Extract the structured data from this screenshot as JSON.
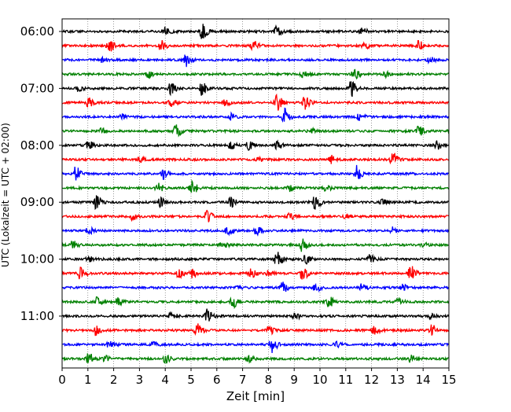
{
  "chart_data": {
    "type": "line",
    "title": "",
    "xlabel": "Zeit  [min]",
    "ylabel": "UTC (Lokalzeit = UTC + 02:00)",
    "xlim": [
      0,
      15
    ],
    "x_ticks": [
      0,
      1,
      2,
      3,
      4,
      5,
      6,
      7,
      8,
      9,
      10,
      11,
      12,
      13,
      14,
      15
    ],
    "x_tick_labels": [
      "0",
      "1",
      "2",
      "3",
      "4",
      "5",
      "6",
      "7",
      "8",
      "9",
      "10",
      "11",
      "12",
      "13",
      "14",
      "15"
    ],
    "y_tick_labels": [
      "06:00",
      "07:00",
      "08:00",
      "09:00",
      "10:00",
      "11:00"
    ],
    "y_tick_rows": [
      0,
      4,
      8,
      12,
      16,
      20
    ],
    "row_minutes": 15,
    "grid": "vertical dotted lines at each minute",
    "color_cycle": [
      "#000000",
      "#ff0000",
      "#0000ff",
      "#008000"
    ],
    "rows": [
      {
        "start": "06:00",
        "events": [
          [
            5.4,
            1.0
          ],
          [
            8.3,
            0.6
          ],
          [
            4.0,
            0.5
          ],
          [
            11.6,
            0.4
          ]
        ]
      },
      {
        "start": "06:15",
        "events": [
          [
            1.8,
            0.9
          ],
          [
            3.8,
            0.7
          ],
          [
            7.4,
            0.6
          ],
          [
            13.8,
            0.6
          ],
          [
            11.7,
            0.4
          ]
        ]
      },
      {
        "start": "06:30",
        "events": [
          [
            4.8,
            1.0
          ],
          [
            14.2,
            0.4
          ],
          [
            1.5,
            0.3
          ]
        ]
      },
      {
        "start": "06:45",
        "events": [
          [
            11.3,
            0.7
          ],
          [
            3.3,
            0.4
          ],
          [
            9.3,
            0.4
          ],
          [
            12.5,
            0.3
          ]
        ]
      },
      {
        "start": "07:00",
        "events": [
          [
            4.2,
            0.7
          ],
          [
            5.4,
            0.8
          ],
          [
            11.2,
            1.0
          ],
          [
            0.6,
            0.3
          ]
        ]
      },
      {
        "start": "07:15",
        "events": [
          [
            8.3,
            1.0
          ],
          [
            9.4,
            0.9
          ],
          [
            1.0,
            0.5
          ],
          [
            4.2,
            0.5
          ],
          [
            6.3,
            0.4
          ]
        ]
      },
      {
        "start": "07:30",
        "events": [
          [
            8.6,
            1.0
          ],
          [
            6.5,
            0.4
          ],
          [
            2.3,
            0.3
          ],
          [
            11.5,
            0.4
          ]
        ]
      },
      {
        "start": "07:45",
        "events": [
          [
            4.4,
            0.8
          ],
          [
            13.8,
            0.6
          ],
          [
            1.5,
            0.3
          ],
          [
            9.6,
            0.3
          ]
        ]
      },
      {
        "start": "08:00",
        "events": [
          [
            1.0,
            0.5
          ],
          [
            6.5,
            0.5
          ],
          [
            7.2,
            0.5
          ],
          [
            8.3,
            0.5
          ],
          [
            14.5,
            0.5
          ]
        ]
      },
      {
        "start": "08:15",
        "events": [
          [
            12.8,
            0.9
          ],
          [
            10.4,
            0.5
          ],
          [
            3.0,
            0.3
          ],
          [
            7.6,
            0.3
          ]
        ]
      },
      {
        "start": "08:30",
        "events": [
          [
            0.5,
            0.9
          ],
          [
            11.4,
            1.0
          ],
          [
            3.9,
            0.6
          ]
        ]
      },
      {
        "start": "08:45",
        "events": [
          [
            3.7,
            0.6
          ],
          [
            5.0,
            1.0
          ],
          [
            10.2,
            0.5
          ],
          [
            8.8,
            0.4
          ]
        ]
      },
      {
        "start": "09:00",
        "events": [
          [
            1.3,
            0.9
          ],
          [
            3.8,
            0.6
          ],
          [
            6.5,
            0.7
          ],
          [
            9.8,
            1.0
          ],
          [
            12.4,
            0.3
          ]
        ]
      },
      {
        "start": "09:15",
        "events": [
          [
            2.7,
            0.4
          ],
          [
            5.6,
            0.7
          ],
          [
            8.8,
            0.4
          ],
          [
            11.0,
            0.3
          ]
        ]
      },
      {
        "start": "09:30",
        "events": [
          [
            1.0,
            0.4
          ],
          [
            6.4,
            0.6
          ],
          [
            7.5,
            0.6
          ],
          [
            12.8,
            0.4
          ]
        ]
      },
      {
        "start": "09:45",
        "events": [
          [
            9.3,
            0.8
          ],
          [
            0.4,
            0.5
          ],
          [
            6.2,
            0.4
          ],
          [
            14.0,
            0.3
          ]
        ]
      },
      {
        "start": "10:00",
        "events": [
          [
            8.3,
            1.0
          ],
          [
            9.4,
            0.7
          ],
          [
            11.9,
            0.5
          ],
          [
            1.0,
            0.3
          ]
        ]
      },
      {
        "start": "10:15",
        "events": [
          [
            0.7,
            0.8
          ],
          [
            4.5,
            0.5
          ],
          [
            5.0,
            0.5
          ],
          [
            7.3,
            0.5
          ],
          [
            8.0,
            0.5
          ],
          [
            9.3,
            0.8
          ],
          [
            13.5,
            1.0
          ]
        ]
      },
      {
        "start": "10:30",
        "events": [
          [
            8.5,
            0.7
          ],
          [
            9.8,
            0.5
          ],
          [
            11.6,
            0.4
          ],
          [
            13.2,
            0.4
          ],
          [
            6.8,
            0.3
          ]
        ]
      },
      {
        "start": "10:45",
        "events": [
          [
            6.6,
            0.8
          ],
          [
            10.3,
            0.7
          ],
          [
            1.3,
            0.5
          ],
          [
            2.1,
            0.5
          ],
          [
            13.0,
            0.5
          ]
        ]
      },
      {
        "start": "11:00",
        "events": [
          [
            4.2,
            0.5
          ],
          [
            5.6,
            0.9
          ],
          [
            9.0,
            0.4
          ],
          [
            14.3,
            0.4
          ]
        ]
      },
      {
        "start": "11:15",
        "events": [
          [
            1.3,
            0.6
          ],
          [
            5.2,
            1.0
          ],
          [
            8.0,
            0.6
          ],
          [
            12.1,
            0.5
          ],
          [
            14.3,
            0.7
          ]
        ]
      },
      {
        "start": "11:30",
        "events": [
          [
            1.8,
            0.6
          ],
          [
            8.1,
            1.0
          ],
          [
            3.5,
            0.3
          ],
          [
            10.6,
            0.3
          ]
        ]
      },
      {
        "start": "11:45",
        "events": [
          [
            1.0,
            0.7
          ],
          [
            1.6,
            0.4
          ],
          [
            4.0,
            0.5
          ],
          [
            7.2,
            0.4
          ],
          [
            13.5,
            0.4
          ]
        ]
      }
    ]
  }
}
